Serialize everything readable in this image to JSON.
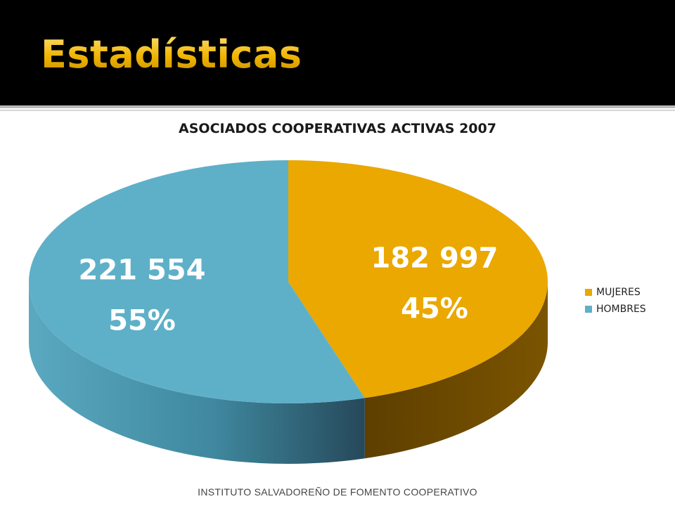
{
  "slide": {
    "title": "Estadísticas",
    "footer": "INSTITUTO SALVADOREÑO DE FOMENTO COOPERATIVO",
    "colors": {
      "header_bg": "#000000",
      "title": "#f5c518"
    }
  },
  "chart_data": {
    "type": "pie",
    "style": "3d",
    "title": "ASOCIADOS COOPERATIVAS ACTIVAS 2007",
    "legend_position": "right",
    "slices": [
      {
        "name": "MUJERES",
        "value": 182997,
        "percent": 45,
        "value_label": "182 997",
        "percent_label": "45%",
        "color": "#eaa800",
        "side_color": "#6b4700"
      },
      {
        "name": "HOMBRES",
        "value": 221554,
        "percent": 55,
        "value_label": "221 554",
        "percent_label": "55%",
        "color": "#5eb0c8",
        "side_color": "#2f6f82"
      }
    ]
  }
}
